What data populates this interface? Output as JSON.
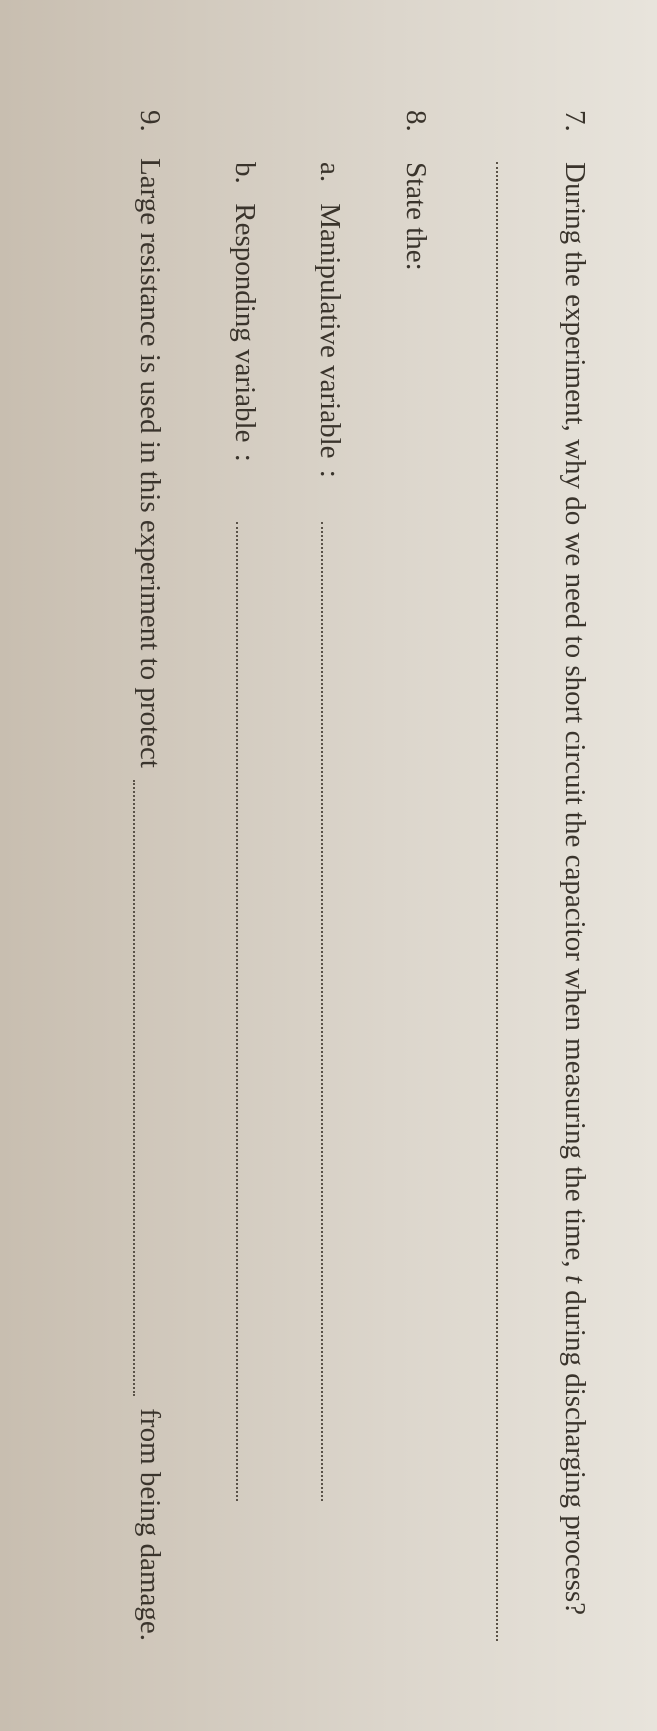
{
  "q7": {
    "number": "7.",
    "text_before_t": "During the experiment, why do we need to short circuit the capacitor when measuring the time, ",
    "t": "t",
    "text_after_t": " during discharging process?"
  },
  "q8": {
    "number": "8.",
    "text": "State the:",
    "a": {
      "letter": "a.",
      "label": "Manipulative variable"
    },
    "b": {
      "letter": "b.",
      "label": "Responding variable"
    }
  },
  "q9": {
    "number": "9.",
    "lead": "Large resistance is used in this experiment to protect",
    "tail": "from being damage."
  },
  "colon": ":"
}
